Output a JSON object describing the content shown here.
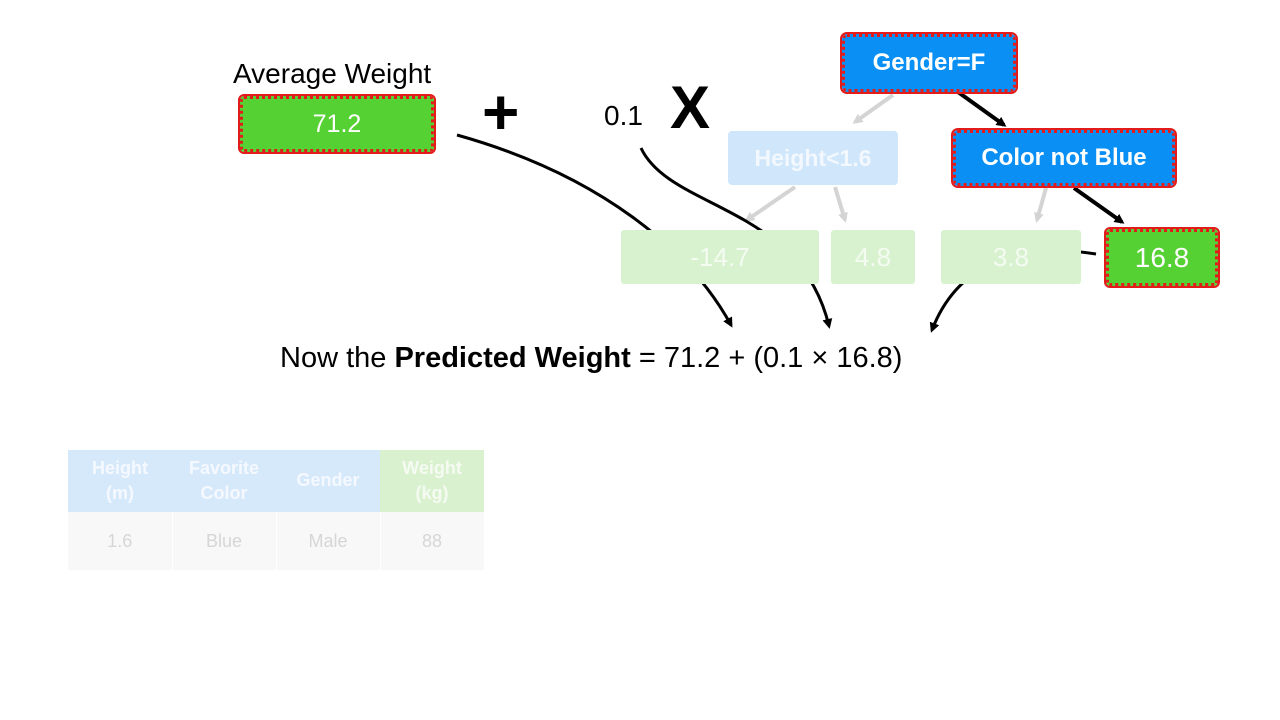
{
  "average": {
    "title": "Average Weight",
    "value": "71.2"
  },
  "operators": {
    "plus": "+",
    "learning_rate": "0.1",
    "times": "X"
  },
  "tree": {
    "root": "Gender=F",
    "left_node": "Height<1.6",
    "right_node": "Color not Blue",
    "leaves": [
      "-14.7",
      "4.8",
      "3.8",
      "16.8"
    ]
  },
  "equation": {
    "prefix": "Now the ",
    "bold": "Predicted Weight",
    "suffix": " = 71.2 + (0.1 × 16.8)"
  },
  "table": {
    "headers": [
      [
        "Height",
        "(m)"
      ],
      [
        "Favorite",
        "Color"
      ],
      [
        "Gender",
        ""
      ],
      [
        "Weight",
        "(kg)"
      ]
    ],
    "row": [
      "1.6",
      "Blue",
      "Male",
      "88"
    ]
  },
  "colors": {
    "leaf_green": "#55d133",
    "node_blue": "#0a8ff5",
    "highlight_red": "#e21b1b"
  }
}
